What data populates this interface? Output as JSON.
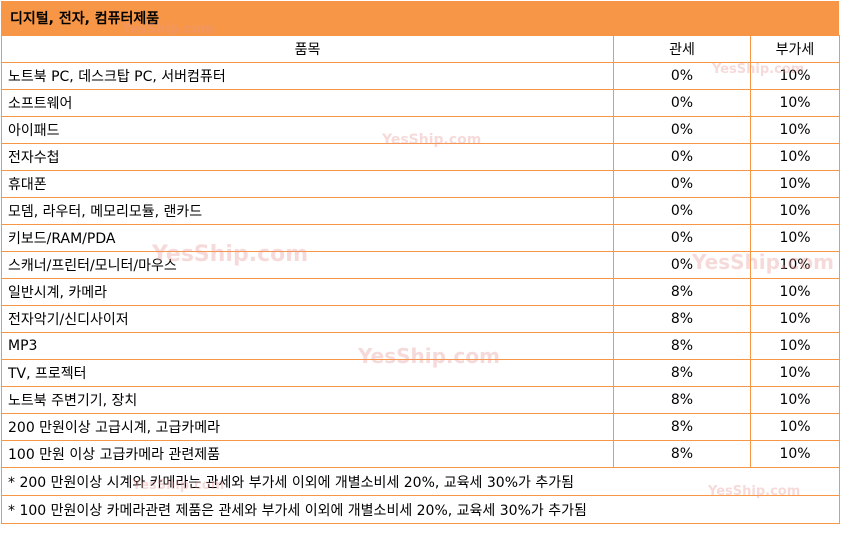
{
  "title": "디지털, 전자, 컴퓨터제품",
  "headers": [
    "품목",
    "관세",
    "부가세"
  ],
  "rows": [
    {
      "item": "노트북 PC,  데스크탑 PC,  서버컴퓨터",
      "duty": "0%",
      "vat": "10%"
    },
    {
      "item": "소프트웨어",
      "duty": "0%",
      "vat": "10%"
    },
    {
      "item": "아이패드",
      "duty": "0%",
      "vat": "10%"
    },
    {
      "item": "전자수첩",
      "duty": "0%",
      "vat": "10%"
    },
    {
      "item": "휴대폰",
      "duty": "0%",
      "vat": "10%"
    },
    {
      "item": "모뎀,  라우터,  메모리모듈,  랜카드",
      "duty": "0%",
      "vat": "10%"
    },
    {
      "item": "키보드/RAM/PDA",
      "duty": "0%",
      "vat": "10%"
    },
    {
      "item": "스캐너/프린터/모니터/마우스",
      "duty": "0%",
      "vat": "10%"
    },
    {
      "item": "일반시계,  카메라",
      "duty": "8%",
      "vat": "10%"
    },
    {
      "item": "전자악기/신디사이저",
      "duty": "8%",
      "vat": "10%"
    },
    {
      "item": "MP3",
      "duty": "8%",
      "vat": "10%"
    },
    {
      "item": "TV,  프로젝터",
      "duty": "8%",
      "vat": "10%"
    },
    {
      "item": "노트북  주변기기,  장치",
      "duty": "8%",
      "vat": "10%"
    },
    {
      "item": "200 만원이상  고급시계,  고급카메라",
      "duty": "8%",
      "vat": "10%"
    },
    {
      "item": "100 만원  이상  고급카메라  관련제품",
      "duty": "8%",
      "vat": "10%"
    }
  ],
  "notes": [
    "* 200 만원이상  시계와  카메라는  관세와  부가세  이외에  개별소비세  20%,  교육세  30%가  추가됨",
    "* 100 만원이상  카메라관련  제품은  관세와  부가세  이외에  개별소비세  20%,  교육세  30%가  추가됨"
  ],
  "watermark": "YesShip.com",
  "colors": {
    "accent": "#f79646"
  }
}
